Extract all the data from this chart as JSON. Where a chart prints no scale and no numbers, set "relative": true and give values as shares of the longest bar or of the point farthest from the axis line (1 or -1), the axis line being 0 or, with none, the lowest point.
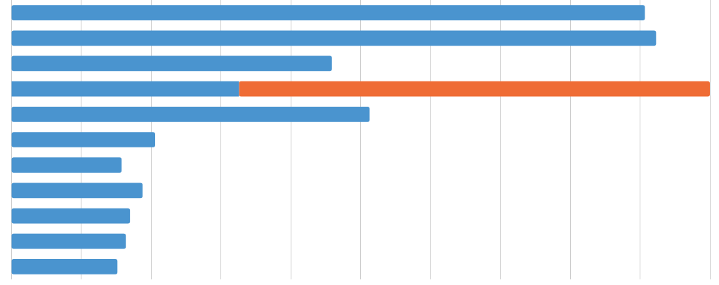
{
  "chart_data": {
    "type": "bar",
    "orientation": "horizontal",
    "stacked": true,
    "relative": true,
    "grid": "x",
    "legend": false,
    "categories": [
      null,
      null,
      null,
      null,
      null,
      null,
      null,
      null,
      null,
      null,
      null
    ],
    "series": [
      {
        "color": "#4a94cf",
        "values": [
          0.907,
          0.923,
          0.459,
          0.326,
          0.513,
          0.206,
          0.158,
          0.188,
          0.17,
          0.164,
          0.152
        ]
      },
      {
        "color": "#ef6c35",
        "values": [
          null,
          null,
          null,
          0.674,
          null,
          null,
          null,
          null,
          null,
          null,
          null
        ]
      }
    ]
  }
}
